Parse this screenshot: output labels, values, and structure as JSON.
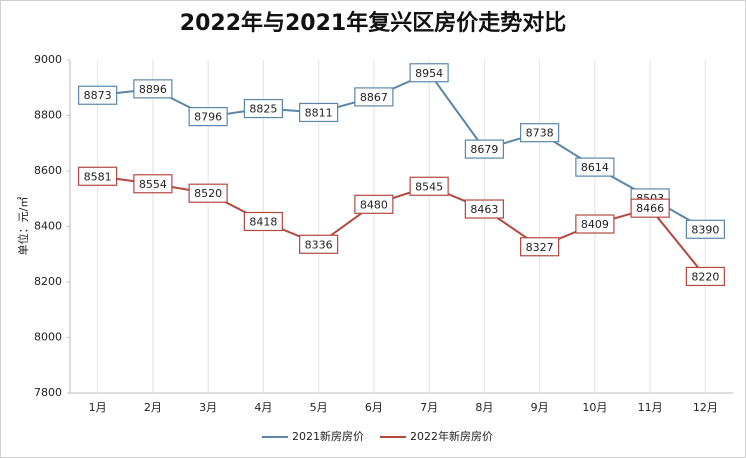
{
  "chart_data": {
    "type": "line",
    "title": "2022年与2021年复兴区房价走势对比",
    "y_label": "单位：元/㎡",
    "categories": [
      "1月",
      "2月",
      "3月",
      "4月",
      "5月",
      "6月",
      "7月",
      "8月",
      "9月",
      "10月",
      "11月",
      "12月"
    ],
    "series": [
      {
        "name": "2021新房房价",
        "color": "#5b86a8",
        "values": [
          8873,
          8896,
          8796,
          8825,
          8811,
          8867,
          8954,
          8679,
          8738,
          8614,
          8503,
          8390
        ]
      },
      {
        "name": "2022年新房房价",
        "color": "#b5473f",
        "values": [
          8581,
          8554,
          8520,
          8418,
          8336,
          8480,
          8545,
          8463,
          8327,
          8409,
          8466,
          8220
        ]
      }
    ],
    "ylim": [
      7800,
      9000
    ],
    "yticks": [
      7800,
      8000,
      8200,
      8400,
      8600,
      8800,
      9000
    ],
    "grid": true,
    "legend": "bottom"
  }
}
